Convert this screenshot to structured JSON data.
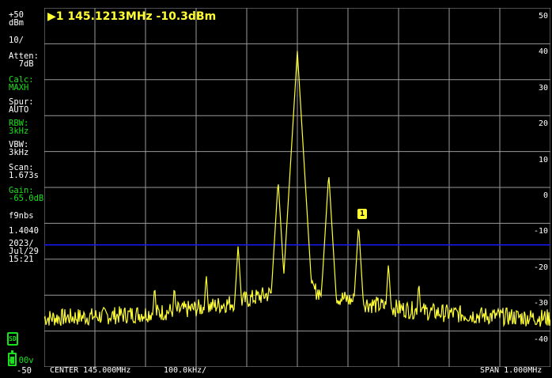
{
  "colors": {
    "trace": "#ffff33",
    "grid": "#9a9a9a",
    "ref_line": "#1a1aff",
    "green": "#18e01a"
  },
  "marker": {
    "line": "▶1 145.1213MHz -10.3dBm",
    "badge": "1"
  },
  "sidebar": {
    "ref_level": "+50\ndBm",
    "scale": "10/",
    "atten": "Atten:\n  7dB",
    "calc": "Calc:\nMAXH",
    "spur": "Spur:\nAUTO",
    "rbw": "RBW:\n3kHz",
    "vbw": "VBW:\n3kHz",
    "scan": "Scan:\n1.673s",
    "gain": "Gain:\n-65.0dB",
    "fw": "f9nbs",
    "version": "1.4040",
    "date": "2023/\nJul/29\n15:21",
    "sd_icon": "sd-card-icon",
    "battery_icon": "battery-icon",
    "battery_voltage": "4.00v",
    "bottom_level": "-50"
  },
  "y_axis_labels": [
    "50",
    "40",
    "30",
    "20",
    "10",
    "0",
    "-10",
    "-20",
    "-30",
    "-40"
  ],
  "bottom_bar": {
    "center": "CENTER 145.000MHz",
    "per_div": "100.0kHz/",
    "span": "SPAN 1.000MHz"
  },
  "chart_data": {
    "type": "line",
    "title": "",
    "xlabel": "",
    "ylabel": "",
    "xlim": [
      144.5,
      145.5
    ],
    "ylim": [
      -50,
      50
    ],
    "unit_x": "MHz",
    "unit_y": "dBm",
    "grid": true,
    "reference_line_dbm": -16,
    "peaks": [
      {
        "x": 144.718,
        "y": -27
      },
      {
        "x": 144.757,
        "y": -27
      },
      {
        "x": 144.82,
        "y": -24
      },
      {
        "x": 144.883,
        "y": -16
      },
      {
        "x": 144.962,
        "y": 2
      },
      {
        "x": 145.0,
        "y": 38
      },
      {
        "x": 145.062,
        "y": 4
      },
      {
        "x": 145.121,
        "y": -10.3
      },
      {
        "x": 145.18,
        "y": -21
      },
      {
        "x": 145.24,
        "y": -26
      }
    ]
  }
}
